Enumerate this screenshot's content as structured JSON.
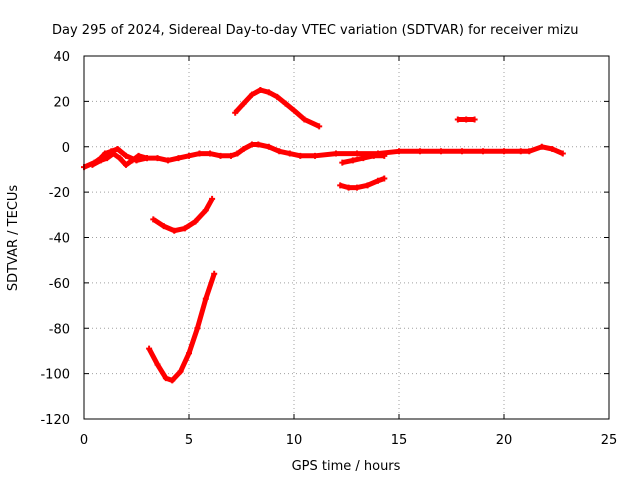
{
  "chart_data": {
    "type": "line",
    "title": "Day 295 of 2024, Sidereal Day-to-day VTEC variation (SDTVAR) for receiver mizu",
    "xlabel": "GPS time / hours",
    "ylabel": "SDTVAR / TECUs",
    "xlim": [
      0,
      25
    ],
    "ylim": [
      -120,
      40
    ],
    "xticks": [
      "0",
      "5",
      "10",
      "15",
      "20",
      "25"
    ],
    "yticks": [
      "40",
      "20",
      "0",
      "-20",
      "-40",
      "-60",
      "-80",
      "-100",
      "-120"
    ],
    "grid": true,
    "color": "#ff0000",
    "series": [
      {
        "name": "main-track",
        "points": [
          [
            0.0,
            -9
          ],
          [
            0.5,
            -7
          ],
          [
            0.8,
            -5
          ],
          [
            1.0,
            -3
          ],
          [
            1.3,
            -2
          ],
          [
            1.6,
            -1
          ],
          [
            2.0,
            -4
          ],
          [
            2.5,
            -6
          ],
          [
            3.0,
            -5
          ],
          [
            3.5,
            -5
          ],
          [
            4.0,
            -6
          ],
          [
            4.5,
            -5
          ],
          [
            5.0,
            -4
          ],
          [
            5.5,
            -3
          ],
          [
            6.0,
            -3
          ],
          [
            6.5,
            -4
          ],
          [
            7.0,
            -4
          ],
          [
            7.3,
            -3
          ],
          [
            7.6,
            -1
          ],
          [
            8.0,
            1
          ],
          [
            8.3,
            1
          ],
          [
            8.8,
            0
          ],
          [
            9.3,
            -2
          ],
          [
            9.8,
            -3
          ],
          [
            10.3,
            -4
          ],
          [
            11.0,
            -4
          ],
          [
            12.0,
            -3
          ],
          [
            13.0,
            -3
          ],
          [
            14.0,
            -3
          ],
          [
            15.0,
            -2
          ],
          [
            16.0,
            -2
          ],
          [
            17.0,
            -2
          ],
          [
            18.0,
            -2
          ],
          [
            19.0,
            -2
          ],
          [
            20.0,
            -2
          ],
          [
            20.8,
            -2
          ],
          [
            21.2,
            -2
          ],
          [
            21.8,
            0
          ],
          [
            22.3,
            -1
          ],
          [
            22.8,
            -3
          ]
        ]
      },
      {
        "name": "early-scatter",
        "points": [
          [
            0.4,
            -8
          ],
          [
            0.8,
            -6
          ],
          [
            1.1,
            -5
          ],
          [
            1.4,
            -3
          ],
          [
            1.7,
            -5
          ],
          [
            2.0,
            -8
          ],
          [
            2.3,
            -6
          ],
          [
            2.6,
            -4
          ],
          [
            3.0,
            -5
          ]
        ]
      },
      {
        "name": "upper-arc",
        "points": [
          [
            7.2,
            15
          ],
          [
            7.6,
            19
          ],
          [
            8.0,
            23
          ],
          [
            8.4,
            25
          ],
          [
            8.8,
            24
          ],
          [
            9.2,
            22
          ],
          [
            9.6,
            19
          ],
          [
            10.0,
            16
          ],
          [
            10.5,
            12
          ],
          [
            11.2,
            9
          ]
        ]
      },
      {
        "name": "lower-branch",
        "points": [
          [
            12.3,
            -7
          ],
          [
            12.8,
            -6
          ],
          [
            13.3,
            -5
          ],
          [
            13.8,
            -4
          ],
          [
            14.3,
            -4
          ]
        ]
      },
      {
        "name": "mid-arc",
        "points": [
          [
            12.2,
            -17
          ],
          [
            12.6,
            -18
          ],
          [
            13.0,
            -18
          ],
          [
            13.5,
            -17
          ],
          [
            14.0,
            -15
          ],
          [
            14.3,
            -14
          ]
        ]
      },
      {
        "name": "short-segment",
        "points": [
          [
            17.8,
            12
          ],
          [
            18.2,
            12
          ],
          [
            18.6,
            12
          ]
        ]
      },
      {
        "name": "dip-arc",
        "points": [
          [
            3.3,
            -32
          ],
          [
            3.8,
            -35
          ],
          [
            4.3,
            -37
          ],
          [
            4.8,
            -36
          ],
          [
            5.3,
            -33
          ],
          [
            5.8,
            -28
          ],
          [
            6.1,
            -23
          ]
        ]
      },
      {
        "name": "deep-arc",
        "points": [
          [
            3.1,
            -89
          ],
          [
            3.5,
            -96
          ],
          [
            3.9,
            -102
          ],
          [
            4.2,
            -103
          ],
          [
            4.6,
            -99
          ],
          [
            5.0,
            -91
          ],
          [
            5.4,
            -80
          ],
          [
            5.8,
            -67
          ],
          [
            6.2,
            -56
          ]
        ]
      }
    ]
  }
}
